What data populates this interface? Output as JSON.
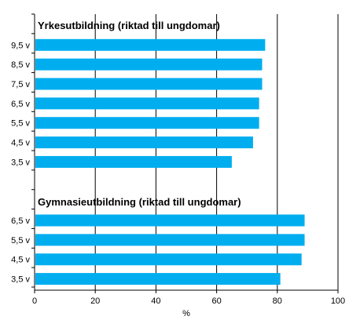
{
  "chart_data": {
    "type": "bar",
    "orientation": "horizontal",
    "xlabel": "%",
    "xlim": [
      0,
      100
    ],
    "xticks": [
      0,
      20,
      40,
      60,
      80,
      100
    ],
    "grid": "vertical",
    "bar_color": "#00AEEF",
    "groups": [
      {
        "title": "Yrkesutbildning (riktad till ungdomar)",
        "categories": [
          "9,5 v",
          "8,5 v",
          "7,5 v",
          "6,5 v",
          "5,5 v",
          "4,5 v",
          "3,5 v"
        ],
        "values": [
          76,
          75,
          75,
          74,
          74,
          72,
          65
        ]
      },
      {
        "title": "Gymnasieutbildning  (riktad till ungdomar)",
        "categories": [
          "6,5 v",
          "5,5 v",
          "4,5 v",
          "3,5 v"
        ],
        "values": [
          89,
          89,
          88,
          81
        ]
      }
    ]
  }
}
